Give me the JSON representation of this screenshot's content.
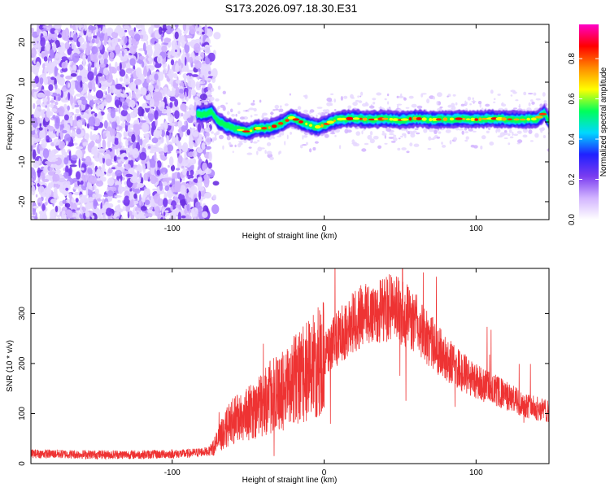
{
  "chart_data": [
    {
      "type": "heatmap",
      "title": "S173.2026.097.18.30.E31",
      "xlabel": "Height of straight line (km)",
      "ylabel": "Frequency (Hz)",
      "xlim": [
        -193,
        148
      ],
      "ylim": [
        -24.5,
        24.5
      ],
      "xticks": [
        -100,
        0,
        100
      ],
      "yticks": [
        -20,
        -10,
        0,
        10,
        20
      ],
      "noise_region_x": [
        -193,
        -75
      ],
      "ridge": {
        "x": [
          -85,
          -78,
          -74,
          -70,
          -65,
          -60,
          -55,
          -50,
          -45,
          -40,
          -35,
          -30,
          -25,
          -22,
          -20,
          -15,
          -10,
          -5,
          0,
          5,
          10,
          20,
          30,
          40,
          50,
          60,
          70,
          80,
          90,
          100,
          110,
          120,
          130,
          140,
          145,
          148
        ],
        "freq_hz": [
          2,
          2,
          2.6,
          0.3,
          -0.8,
          -1.5,
          -2,
          -2.5,
          -1.6,
          -1.6,
          -1.4,
          -0.6,
          0.2,
          1.1,
          0.9,
          0,
          -0.7,
          -1.3,
          -0.8,
          0.1,
          0.7,
          0.9,
          0.6,
          0.8,
          0.5,
          0.9,
          0.6,
          0.7,
          0.8,
          0.6,
          0.9,
          0.7,
          0.6,
          0.8,
          2.3,
          0.2
        ]
      },
      "colorbar": {
        "label": "Normalized spectral amplitude",
        "ticks": [
          0.0,
          0.2,
          0.4,
          0.6,
          0.8
        ],
        "range": [
          0,
          0.97
        ],
        "colormap": [
          "#ffffff",
          "#d2b4ff",
          "#7a3cf0",
          "#2020ff",
          "#00d8ff",
          "#00ff5a",
          "#ffff00",
          "#ff8a00",
          "#ff0000",
          "#ff00c8"
        ]
      }
    },
    {
      "type": "line",
      "xlabel": "Height of straight line (km)",
      "ylabel": "SNR (10 * v/v)",
      "xlim": [
        -193,
        148
      ],
      "ylim": [
        0,
        390
      ],
      "xticks": [
        -100,
        0,
        100
      ],
      "yticks": [
        0,
        100,
        200,
        300
      ],
      "color": "#ee3333",
      "series": [
        {
          "name": "SNR",
          "x": [
            -193,
            -150,
            -120,
            -90,
            -75,
            -70,
            -65,
            -60,
            -55,
            -50,
            -45,
            -40,
            -35,
            -30,
            -25,
            -20,
            -15,
            -10,
            -5,
            0,
            5,
            10,
            15,
            20,
            25,
            30,
            35,
            40,
            45,
            50,
            55,
            60,
            70,
            80,
            90,
            100,
            110,
            120,
            130,
            140,
            148
          ],
          "values": [
            20,
            18,
            18,
            20,
            25,
            45,
            70,
            85,
            95,
            100,
            110,
            120,
            135,
            140,
            150,
            165,
            175,
            185,
            200,
            215,
            235,
            255,
            270,
            285,
            295,
            300,
            305,
            310,
            310,
            305,
            295,
            280,
            245,
            210,
            185,
            165,
            150,
            135,
            120,
            110,
            105
          ]
        }
      ]
    }
  ]
}
